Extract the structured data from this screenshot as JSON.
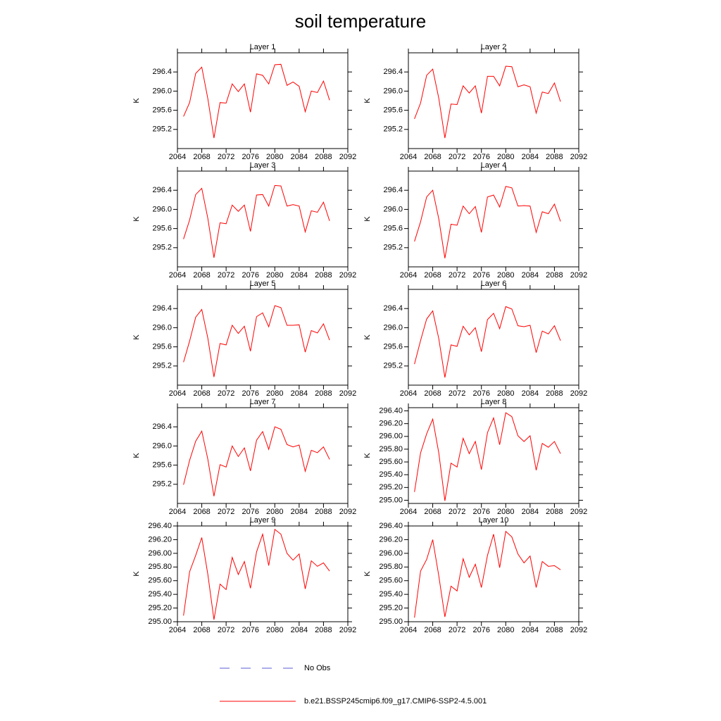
{
  "title": "soil temperature",
  "legend": [
    {
      "name": "No Obs",
      "color": "#5b5bd6",
      "dash": true
    },
    {
      "name": "b.e21.BSSP245cmip6.f09_g17.CMIP6-SSP2-4.5.001",
      "color": "#ff0000",
      "dash": false
    }
  ],
  "chart_data": [
    {
      "type": "line",
      "title": "Layer 1",
      "y_label": "K",
      "x": [
        2065,
        2066,
        2067,
        2068,
        2069,
        2070,
        2071,
        2072,
        2073,
        2074,
        2075,
        2076,
        2077,
        2078,
        2079,
        2080,
        2081,
        2082,
        2083,
        2084,
        2085,
        2086,
        2087,
        2088,
        2089
      ],
      "series": [
        {
          "color": "#ff0000",
          "values": [
            295.47,
            295.76,
            296.37,
            296.5,
            295.84,
            295.02,
            295.76,
            295.75,
            296.15,
            295.99,
            296.15,
            295.56,
            296.36,
            296.33,
            296.15,
            296.55,
            296.56,
            296.12,
            296.19,
            296.1,
            295.57,
            296.0,
            295.97,
            296.21,
            295.81
          ]
        }
      ],
      "xlim": [
        2064,
        2092
      ],
      "xticks": [
        2064,
        2068,
        2072,
        2076,
        2080,
        2084,
        2088,
        2092
      ],
      "ylim": [
        294.8,
        296.8
      ],
      "yticks": [
        {
          "value": 295.2,
          "label": "295.2"
        },
        {
          "value": 295.6,
          "label": "295.6"
        },
        {
          "value": 296.0,
          "label": "296.0"
        },
        {
          "value": 296.4,
          "label": "296.4"
        }
      ]
    },
    {
      "type": "line",
      "title": "Layer 2",
      "y_label": "K",
      "x": [
        2065,
        2066,
        2067,
        2068,
        2069,
        2070,
        2071,
        2072,
        2073,
        2074,
        2075,
        2076,
        2077,
        2078,
        2079,
        2080,
        2081,
        2082,
        2083,
        2084,
        2085,
        2086,
        2087,
        2088,
        2089
      ],
      "series": [
        {
          "color": "#ff0000",
          "values": [
            295.42,
            295.75,
            296.33,
            296.46,
            295.85,
            295.02,
            295.73,
            295.72,
            296.11,
            295.96,
            296.11,
            295.54,
            296.31,
            296.31,
            296.11,
            296.52,
            296.51,
            296.09,
            296.13,
            296.09,
            295.54,
            295.98,
            295.95,
            296.17,
            295.78
          ]
        }
      ],
      "xlim": [
        2064,
        2092
      ],
      "xticks": [
        2064,
        2068,
        2072,
        2076,
        2080,
        2084,
        2088,
        2092
      ],
      "ylim": [
        294.8,
        296.8
      ],
      "yticks": [
        {
          "value": 295.2,
          "label": "295.2"
        },
        {
          "value": 295.6,
          "label": "295.6"
        },
        {
          "value": 296.0,
          "label": "296.0"
        },
        {
          "value": 296.4,
          "label": "296.4"
        }
      ]
    },
    {
      "type": "line",
      "title": "Layer 3",
      "y_label": "K",
      "x": [
        2065,
        2066,
        2067,
        2068,
        2069,
        2070,
        2071,
        2072,
        2073,
        2074,
        2075,
        2076,
        2077,
        2078,
        2079,
        2080,
        2081,
        2082,
        2083,
        2084,
        2085,
        2086,
        2087,
        2088,
        2089
      ],
      "series": [
        {
          "color": "#ff0000",
          "values": [
            295.38,
            295.78,
            296.31,
            296.44,
            295.81,
            294.99,
            295.72,
            295.7,
            296.09,
            295.96,
            296.09,
            295.54,
            296.3,
            296.31,
            296.07,
            296.5,
            296.49,
            296.07,
            296.1,
            296.07,
            295.53,
            295.97,
            295.94,
            296.15,
            295.76
          ]
        }
      ],
      "xlim": [
        2064,
        2092
      ],
      "xticks": [
        2064,
        2068,
        2072,
        2076,
        2080,
        2084,
        2088,
        2092
      ],
      "ylim": [
        294.8,
        296.8
      ],
      "yticks": [
        {
          "value": 295.2,
          "label": "295.2"
        },
        {
          "value": 295.6,
          "label": "295.6"
        },
        {
          "value": 296.0,
          "label": "296.0"
        },
        {
          "value": 296.4,
          "label": "296.4"
        }
      ]
    },
    {
      "type": "line",
      "title": "Layer 4",
      "y_label": "K",
      "x": [
        2065,
        2066,
        2067,
        2068,
        2069,
        2070,
        2071,
        2072,
        2073,
        2074,
        2075,
        2076,
        2077,
        2078,
        2079,
        2080,
        2081,
        2082,
        2083,
        2084,
        2085,
        2086,
        2087,
        2088,
        2089
      ],
      "series": [
        {
          "color": "#ff0000",
          "values": [
            295.33,
            295.74,
            296.26,
            296.4,
            295.8,
            294.98,
            295.69,
            295.67,
            296.07,
            295.91,
            296.06,
            295.52,
            296.26,
            296.3,
            296.05,
            296.48,
            296.45,
            296.07,
            296.08,
            296.07,
            295.52,
            295.95,
            295.91,
            296.11,
            295.75
          ]
        }
      ],
      "xlim": [
        2064,
        2092
      ],
      "xticks": [
        2064,
        2068,
        2072,
        2076,
        2080,
        2084,
        2088,
        2092
      ],
      "ylim": [
        294.8,
        296.8
      ],
      "yticks": [
        {
          "value": 295.2,
          "label": "295.2"
        },
        {
          "value": 295.6,
          "label": "295.6"
        },
        {
          "value": 296.0,
          "label": "296.0"
        },
        {
          "value": 296.4,
          "label": "296.4"
        }
      ]
    },
    {
      "type": "line",
      "title": "Layer 5",
      "y_label": "K",
      "x": [
        2065,
        2066,
        2067,
        2068,
        2069,
        2070,
        2071,
        2072,
        2073,
        2074,
        2075,
        2076,
        2077,
        2078,
        2079,
        2080,
        2081,
        2082,
        2083,
        2084,
        2085,
        2086,
        2087,
        2088,
        2089
      ],
      "series": [
        {
          "color": "#ff0000",
          "values": [
            295.28,
            295.72,
            296.22,
            296.38,
            295.78,
            294.97,
            295.67,
            295.64,
            296.05,
            295.88,
            296.03,
            295.51,
            296.23,
            296.31,
            296.02,
            296.46,
            296.42,
            296.05,
            296.05,
            296.06,
            295.49,
            295.94,
            295.89,
            296.08,
            295.74
          ]
        }
      ],
      "xlim": [
        2064,
        2092
      ],
      "xticks": [
        2064,
        2068,
        2072,
        2076,
        2080,
        2084,
        2088,
        2092
      ],
      "ylim": [
        294.8,
        296.8
      ],
      "yticks": [
        {
          "value": 295.2,
          "label": "295.2"
        },
        {
          "value": 295.6,
          "label": "295.6"
        },
        {
          "value": 296.0,
          "label": "296.0"
        },
        {
          "value": 296.4,
          "label": "296.4"
        }
      ]
    },
    {
      "type": "line",
      "title": "Layer 6",
      "y_label": "K",
      "x": [
        2065,
        2066,
        2067,
        2068,
        2069,
        2070,
        2071,
        2072,
        2073,
        2074,
        2075,
        2076,
        2077,
        2078,
        2079,
        2080,
        2081,
        2082,
        2083,
        2084,
        2085,
        2086,
        2087,
        2088,
        2089
      ],
      "series": [
        {
          "color": "#ff0000",
          "values": [
            295.24,
            295.73,
            296.18,
            296.35,
            295.77,
            294.96,
            295.64,
            295.61,
            296.03,
            295.85,
            296.0,
            295.5,
            296.17,
            296.3,
            295.98,
            296.44,
            296.39,
            296.04,
            296.02,
            296.05,
            295.48,
            295.93,
            295.87,
            296.04,
            295.73
          ]
        }
      ],
      "xlim": [
        2064,
        2092
      ],
      "xticks": [
        2064,
        2068,
        2072,
        2076,
        2080,
        2084,
        2088,
        2092
      ],
      "ylim": [
        294.8,
        296.8
      ],
      "yticks": [
        {
          "value": 295.2,
          "label": "295.2"
        },
        {
          "value": 295.6,
          "label": "295.6"
        },
        {
          "value": 296.0,
          "label": "296.0"
        },
        {
          "value": 296.4,
          "label": "296.4"
        }
      ]
    },
    {
      "type": "line",
      "title": "Layer 7",
      "y_label": "K",
      "x": [
        2065,
        2066,
        2067,
        2068,
        2069,
        2070,
        2071,
        2072,
        2073,
        2074,
        2075,
        2076,
        2077,
        2078,
        2079,
        2080,
        2081,
        2082,
        2083,
        2084,
        2085,
        2086,
        2087,
        2088,
        2089
      ],
      "series": [
        {
          "color": "#ff0000",
          "values": [
            295.19,
            295.7,
            296.1,
            296.31,
            295.72,
            294.95,
            295.61,
            295.56,
            296.0,
            295.78,
            295.96,
            295.48,
            296.12,
            296.3,
            295.93,
            296.4,
            296.35,
            296.03,
            295.98,
            296.02,
            295.47,
            295.91,
            295.86,
            295.98,
            295.72
          ]
        }
      ],
      "xlim": [
        2064,
        2092
      ],
      "xticks": [
        2064,
        2068,
        2072,
        2076,
        2080,
        2084,
        2088,
        2092
      ],
      "ylim": [
        294.8,
        296.8
      ],
      "yticks": [
        {
          "value": 295.2,
          "label": "295.2"
        },
        {
          "value": 295.6,
          "label": "295.6"
        },
        {
          "value": 296.0,
          "label": "296.0"
        },
        {
          "value": 296.4,
          "label": "296.4"
        }
      ]
    },
    {
      "type": "line",
      "title": "Layer 8",
      "y_label": "K",
      "x": [
        2065,
        2066,
        2067,
        2068,
        2069,
        2070,
        2071,
        2072,
        2073,
        2074,
        2075,
        2076,
        2077,
        2078,
        2079,
        2080,
        2081,
        2082,
        2083,
        2084,
        2085,
        2086,
        2087,
        2088,
        2089
      ],
      "series": [
        {
          "color": "#ff0000",
          "values": [
            295.13,
            295.74,
            296.04,
            296.27,
            295.74,
            294.99,
            295.58,
            295.52,
            295.97,
            295.73,
            295.92,
            295.48,
            296.06,
            296.29,
            295.87,
            296.37,
            296.31,
            296.01,
            295.92,
            296.01,
            295.47,
            295.89,
            295.83,
            295.92,
            295.73
          ]
        }
      ],
      "xlim": [
        2064,
        2092
      ],
      "xticks": [
        2064,
        2068,
        2072,
        2076,
        2080,
        2084,
        2088,
        2092
      ],
      "ylim": [
        294.95,
        296.45
      ],
      "yticks": [
        {
          "value": 295.0,
          "label": "295.00"
        },
        {
          "value": 295.2,
          "label": "295.20"
        },
        {
          "value": 295.4,
          "label": "295.40"
        },
        {
          "value": 295.6,
          "label": "295.60"
        },
        {
          "value": 295.8,
          "label": "295.80"
        },
        {
          "value": 296.0,
          "label": "296.00"
        },
        {
          "value": 296.2,
          "label": "296.20"
        },
        {
          "value": 296.4,
          "label": "296.40"
        }
      ]
    },
    {
      "type": "line",
      "title": "Layer 9",
      "y_label": "K",
      "x": [
        2065,
        2066,
        2067,
        2068,
        2069,
        2070,
        2071,
        2072,
        2073,
        2074,
        2075,
        2076,
        2077,
        2078,
        2079,
        2080,
        2081,
        2082,
        2083,
        2084,
        2085,
        2086,
        2087,
        2088,
        2089
      ],
      "series": [
        {
          "color": "#ff0000",
          "values": [
            295.09,
            295.73,
            295.97,
            296.23,
            295.69,
            295.03,
            295.55,
            295.47,
            295.94,
            295.69,
            295.88,
            295.49,
            296.02,
            296.28,
            295.82,
            296.35,
            296.28,
            296.0,
            295.9,
            295.99,
            295.48,
            295.89,
            295.81,
            295.86,
            295.74
          ]
        }
      ],
      "xlim": [
        2064,
        2092
      ],
      "xticks": [
        2064,
        2068,
        2072,
        2076,
        2080,
        2084,
        2088,
        2092
      ],
      "ylim": [
        295.0,
        296.4
      ],
      "yticks": [
        {
          "value": 295.0,
          "label": "295.00"
        },
        {
          "value": 295.2,
          "label": "295.20"
        },
        {
          "value": 295.4,
          "label": "295.40"
        },
        {
          "value": 295.6,
          "label": "295.60"
        },
        {
          "value": 295.8,
          "label": "295.80"
        },
        {
          "value": 296.0,
          "label": "296.00"
        },
        {
          "value": 296.2,
          "label": "296.20"
        },
        {
          "value": 296.4,
          "label": "296.40"
        }
      ]
    },
    {
      "type": "line",
      "title": "Layer 10",
      "y_label": "K",
      "x": [
        2065,
        2066,
        2067,
        2068,
        2069,
        2070,
        2071,
        2072,
        2073,
        2074,
        2075,
        2076,
        2077,
        2078,
        2079,
        2080,
        2081,
        2082,
        2083,
        2084,
        2085,
        2086,
        2087,
        2088,
        2089
      ],
      "series": [
        {
          "color": "#ff0000",
          "values": [
            295.06,
            295.74,
            295.91,
            296.2,
            295.67,
            295.07,
            295.52,
            295.45,
            295.92,
            295.65,
            295.84,
            295.5,
            295.97,
            296.28,
            295.79,
            296.32,
            296.24,
            295.99,
            295.86,
            295.96,
            295.5,
            295.88,
            295.81,
            295.82,
            295.76
          ]
        }
      ],
      "xlim": [
        2064,
        2092
      ],
      "xticks": [
        2064,
        2068,
        2072,
        2076,
        2080,
        2084,
        2088,
        2092
      ],
      "ylim": [
        295.0,
        296.4
      ],
      "yticks": [
        {
          "value": 295.0,
          "label": "295.00"
        },
        {
          "value": 295.2,
          "label": "295.20"
        },
        {
          "value": 295.4,
          "label": "295.40"
        },
        {
          "value": 295.6,
          "label": "295.60"
        },
        {
          "value": 295.8,
          "label": "295.80"
        },
        {
          "value": 296.0,
          "label": "296.00"
        },
        {
          "value": 296.2,
          "label": "296.20"
        },
        {
          "value": 296.4,
          "label": "296.40"
        }
      ]
    }
  ]
}
